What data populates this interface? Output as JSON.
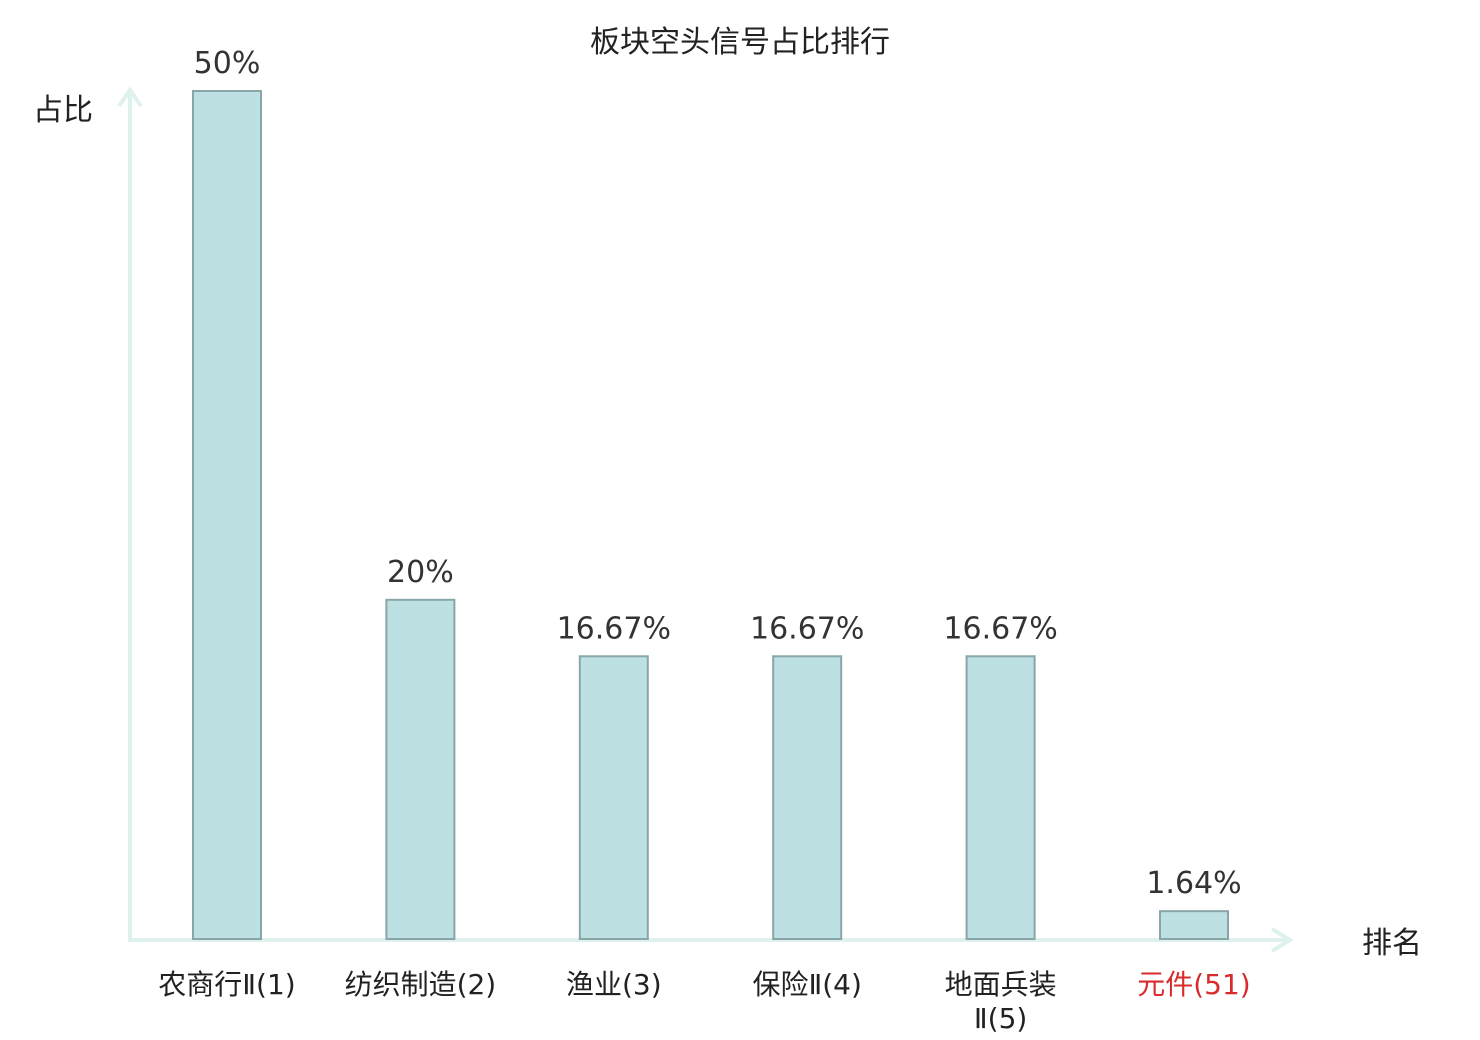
{
  "chart_data": {
    "type": "bar",
    "title": "板块空头信号占比排行",
    "xlabel": "排名",
    "ylabel": "占比",
    "categories": [
      [
        "农商行Ⅱ(1)"
      ],
      [
        "纺织制造(2)"
      ],
      [
        "渔业(3)"
      ],
      [
        "保险Ⅱ(4)"
      ],
      [
        "地面兵装",
        "Ⅱ(5)"
      ],
      [
        "元件(51)"
      ]
    ],
    "values": [
      50,
      20,
      16.67,
      16.67,
      16.67,
      1.64
    ],
    "value_labels": [
      "50%",
      "20%",
      "16.67%",
      "16.67%",
      "16.67%",
      "1.64%"
    ],
    "highlight_index": 5,
    "ylim": [
      0,
      50
    ],
    "grid": false,
    "colors": {
      "bar_fill": "#bde1e3",
      "bar_stroke": "#8aa5a8",
      "axis": "#dff1ee",
      "highlight_text": "#d92b2b",
      "text": "#222222"
    }
  }
}
